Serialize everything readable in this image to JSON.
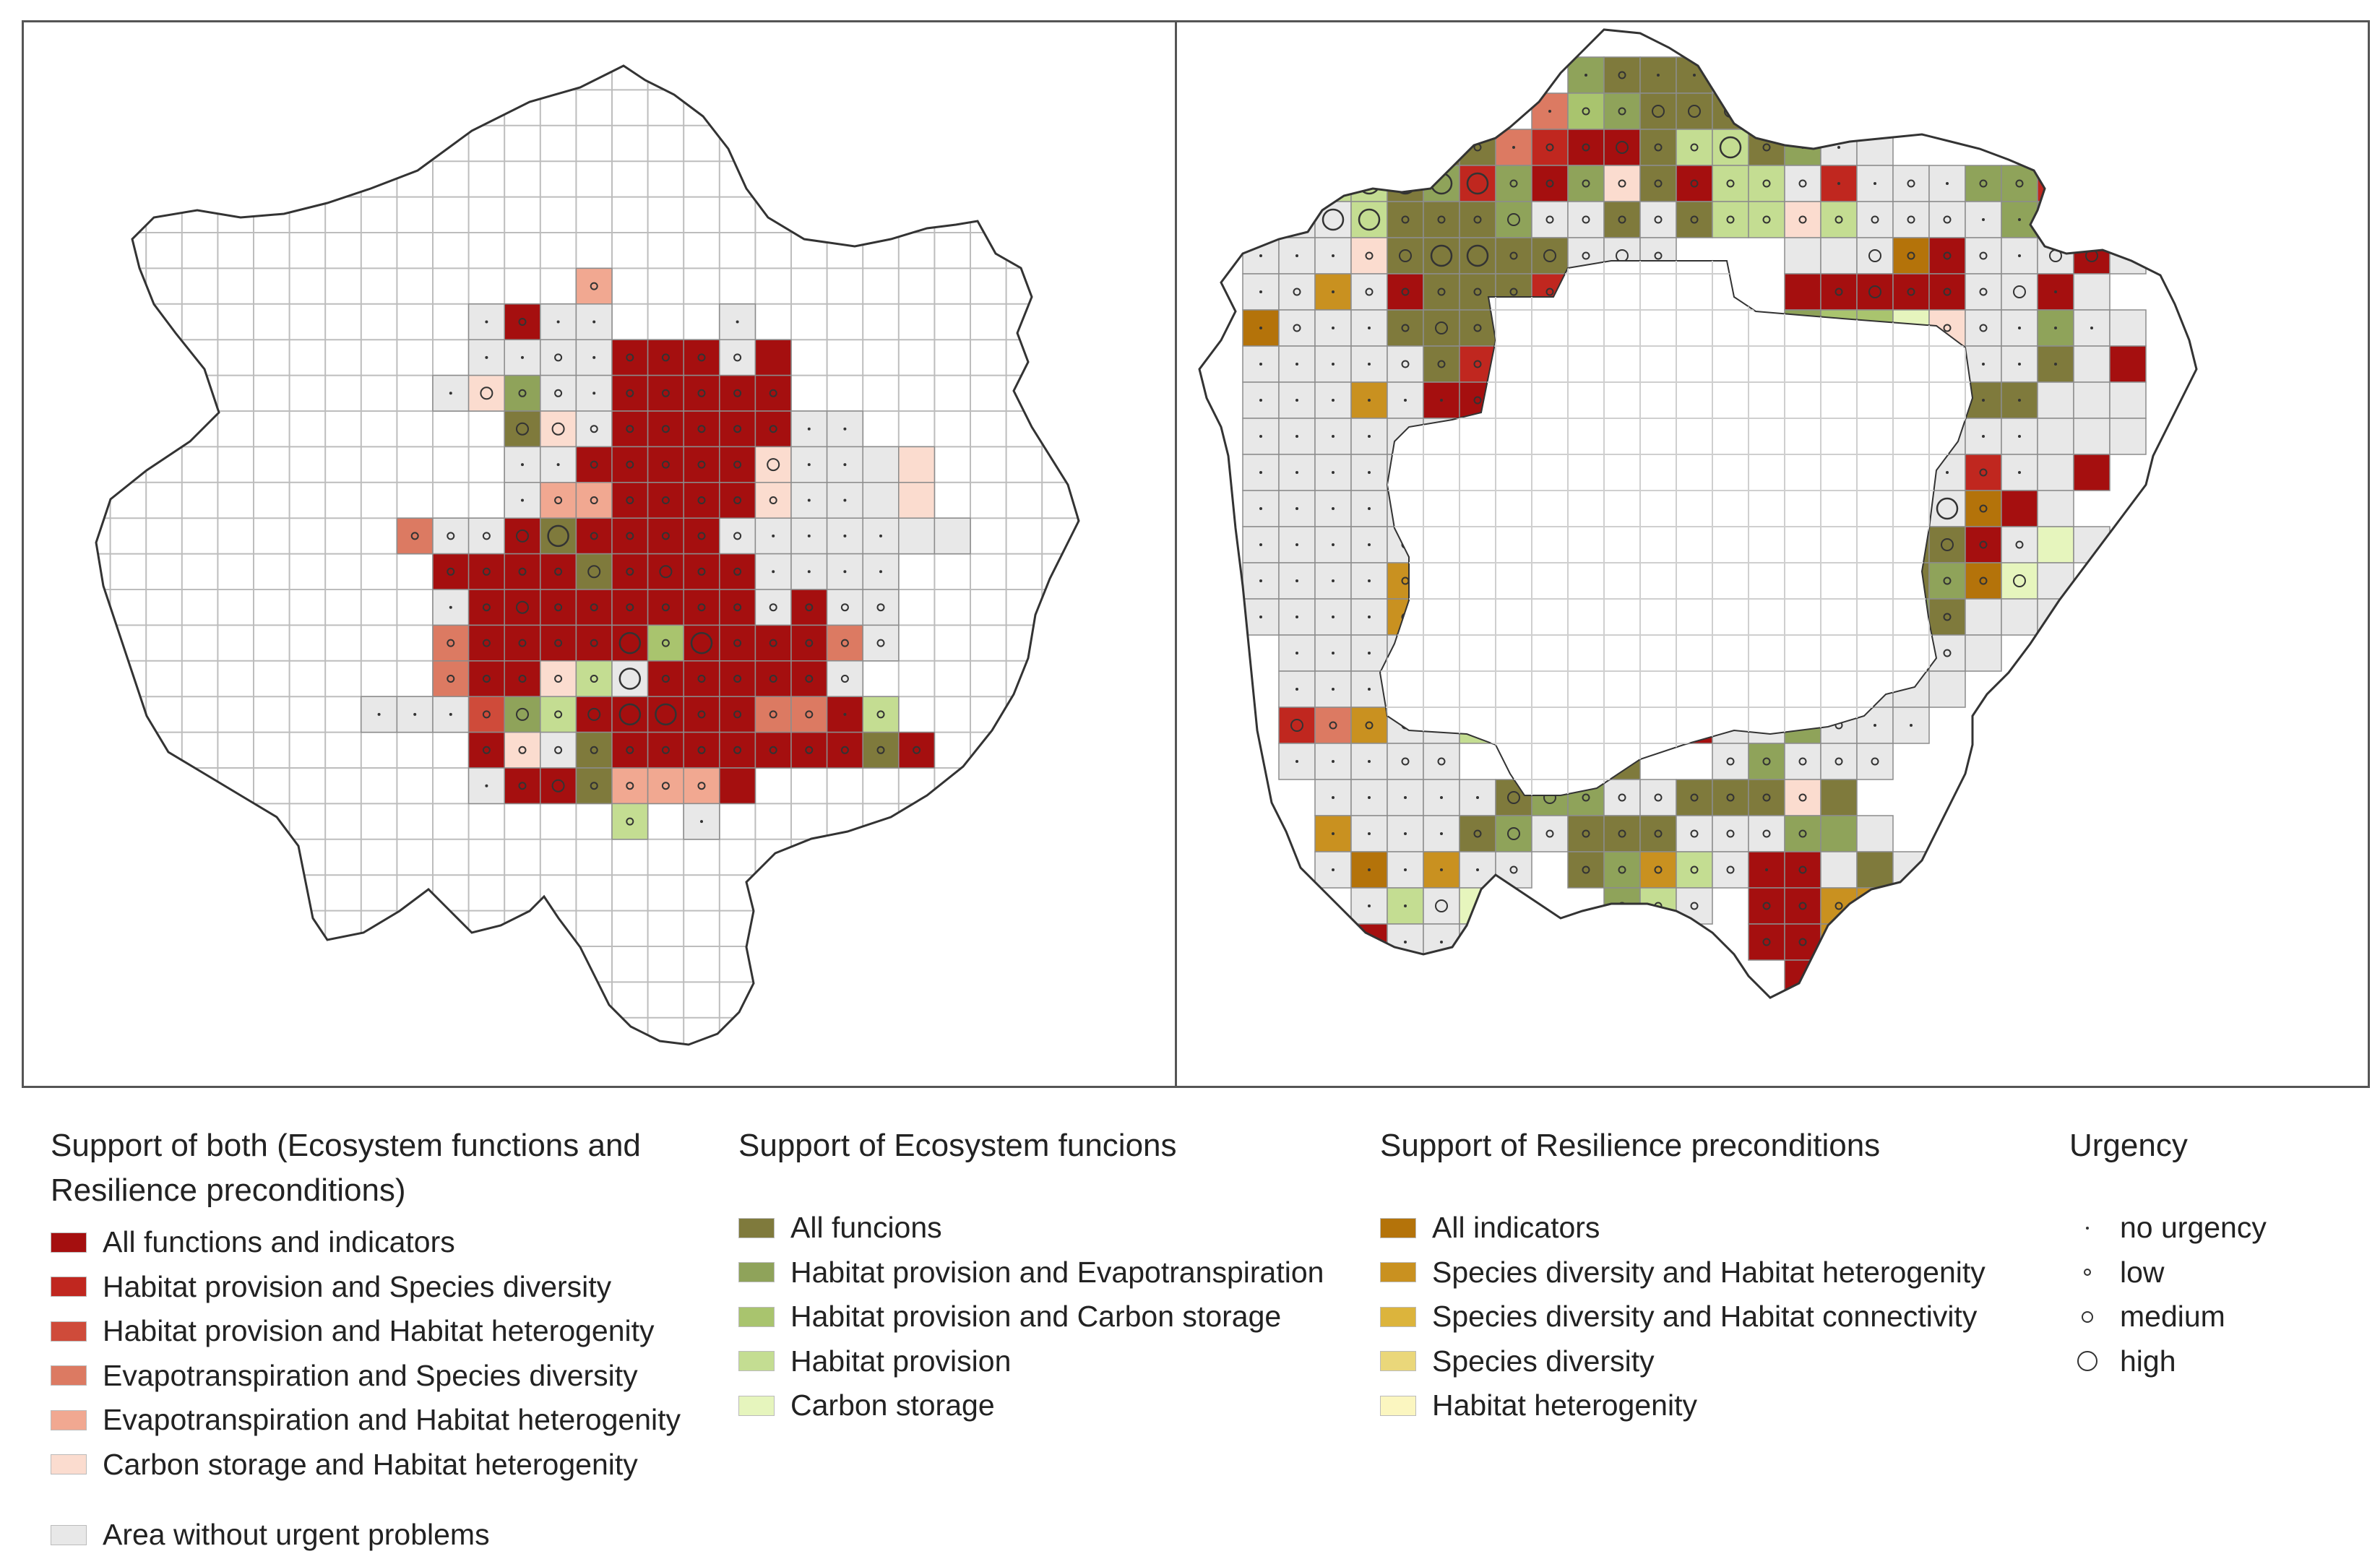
{
  "legend": {
    "both": {
      "heading_line1": "Support of both (Ecosystem functions and",
      "heading_line2": "Resilience preconditions)",
      "items": [
        {
          "label": "All functions and indicators",
          "color": "#a50f0f"
        },
        {
          "label": "Habitat provision and Species diversity",
          "color": "#c0271f"
        },
        {
          "label": "Habitat provision and Habitat heterogenity",
          "color": "#cf4b3a"
        },
        {
          "label": "Evapotranspiration and Species diversity",
          "color": "#dc7a62"
        },
        {
          "label": "Evapotranspiration and Habitat heterogenity",
          "color": "#f1a891"
        },
        {
          "label": "Carbon storage and Habitat heterogenity",
          "color": "#fbdccf"
        }
      ],
      "no_problem": {
        "label": "Area without urgent problems",
        "color": "#e8e8e8"
      }
    },
    "ecosystem": {
      "heading": "Support of Ecosystem funcions",
      "items": [
        {
          "label": "All funcions",
          "color": "#7f7a3c"
        },
        {
          "label": "Habitat provision and Evapotranspiration",
          "color": "#8fa35a"
        },
        {
          "label": "Habitat provision and Carbon storage",
          "color": "#a9c46e"
        },
        {
          "label": "Habitat provision",
          "color": "#c4dd92"
        },
        {
          "label": "Carbon storage",
          "color": "#e6f5bd"
        }
      ]
    },
    "resilience": {
      "heading": "Support of Resilience preconditions",
      "items": [
        {
          "label": "All indicators",
          "color": "#b4730a"
        },
        {
          "label": "Species diversity and Habitat heterogenity",
          "color": "#c99120"
        },
        {
          "label": "Species diversity and Habitat connectivity",
          "color": "#dcb43c"
        },
        {
          "label": "Species diversity",
          "color": "#ead77a"
        },
        {
          "label": "Habitat heterogenity",
          "color": "#fbf6c0"
        }
      ]
    },
    "urgency": {
      "heading": "Urgency",
      "items": [
        {
          "label": "no urgency",
          "level": 0
        },
        {
          "label": "low",
          "level": 1
        },
        {
          "label": "medium",
          "level": 2
        },
        {
          "label": "high",
          "level": 3
        }
      ]
    }
  },
  "maps": {
    "outline_color": "#333333",
    "grid_color": "#bdbdbd",
    "left_map": {
      "cells": [
        "                              ",
        "                              ",
        "                              ",
        "                              ",
        "                              ",
        "                              ",
        "              E               ",
        "           NANN   N           ",
        "           NNNNAAANA          ",
        "          NFHNNAAAAA          ",
        "            GFNAAAAANN        ",
        "            NNAAAAAFNNNF      ",
        "            NEEAAAAFNNNF      ",
        "         DNNAGAAAANNNNNNN     ",
        "          AAAAGAAAANNNN       ",
        "          NAAAAAAAANANN       ",
        "          DAAAAAIAAAADN       ",
        "          DAAFJNAAAAAN        ",
        "        NNNCHJAAAAADDAJ       ",
        "           AFNGAAAAAAAGA      ",
        "           NAAGEEEA           ",
        "               J N            ",
        "                              ",
        "                              ",
        "                              ",
        "                              ",
        "                              ",
        "                              "
      ],
      "urgency": [
        "                              ",
        "                              ",
        "                              ",
        "                              ",
        "                              ",
        "                              ",
        "              1               ",
        "           0100   0           ",
        "           00101111           ",
        "          02110111111         ",
        "            2211111100        ",
        "            0011111200        ",
        "            0111111100        ",
        "         11123111110000       ",
        "          1111212110000       ",
        "          01211111111111      ",
        "          11111313111110      ",
        "          1111131111111       ",
        "        00012123311110111     ",
        "           1111111111111      ",
        "           0121111            ",
        "               1 0            ",
        "                              ",
        "                              ",
        "                              ",
        "                              ",
        "                              ",
        "                              "
      ]
    },
    "right_map": {
      "cells": [
        "         HGGGF          ",
        "        DIHGGGGN        ",
        "   IHGGDBAAGJJGHNN      ",
        " NJJGHBHAHFGAJJNBNNNHHBA",
        "NNNJGGGHNNGNGJJFJNNNNHHA",
        "NNNFGGGGGNNN   NNNLANNNAN",
        "NNMNAGGGBAGNN  AAAAANNAN",
        "LNNNGGGHNN     HIIKFNNHNN",
        "NNNNNGBAAGN    IKKJFNNGNA",
        "NNNMNAAAAAAN   NNHNFGGNNN",
        "NNNNNNDBAAAA   HFGFNNNNNN",
        "NNNNNNFFNN      NNNNBNNA",
        "NNNNNNGGN       NNNNLAN ",
        "NNNNNNNHN       NFGGANKN",
        "NNNNMNGN       NHHGHLKN",
        "NNNNMNKGA      FHGHGNNN",
        " NNNNNA        NHHGNN  ",
        " NNNNN        FNHNNN   ",
        " BDMNNJ     ANNHNNN    ",
        " NNNNN  GGG  NHNNN     ",
        "  NNNNNGHHNNGGGFG      ",
        "  MNNNGHNGGGNNNHHN     ",
        "  NLNMNN GHMJNAANGN    ",
        "   NJNK   HJN AAMMHN   ",
        "   ANNN   J   AAMMAN   ",
        "               AAKJ    ",
        "                A      "
      ],
      "urgency": [
        "         01000          ",
        "        01122210        ",
        "   03310112113100      ",
        " 00333311111111100101111",
        "01331112111111111111001",
        "00012331212111   211102202",
        "01011111113     1211120",
        "01001213111     21111000",
        "00001111001    11323000",
        "00000011111    1110100",
        "0000011111     0013100",
        "000001111      0001010",
        "00000111       000031",
        "0000100        0111211",
        "000010         1111112",
        "000010         12211",
        " 00000         11111  ",
        " 00000        1111   ",
        " 21111        00100   ",
        " 000111 111  11111    ",
        "  00000221111111      ",
        "  00001211111111      ",
        "  000001 1111101      ",
        "   0020   1112111     ",
        "   10000  11211111    ",
        "               0001   ",
        "                0      "
      ]
    }
  }
}
